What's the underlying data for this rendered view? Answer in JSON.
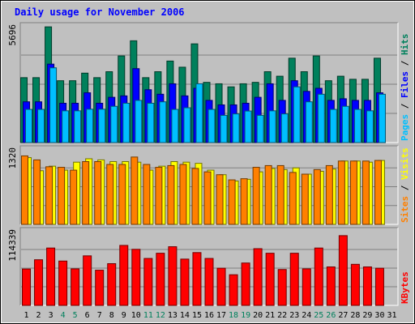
{
  "chart_data": {
    "type": "bar",
    "title": "Daily usage for November 2006",
    "days": [
      "1",
      "2",
      "3",
      "4",
      "5",
      "6",
      "7",
      "8",
      "9",
      "10",
      "11",
      "12",
      "13",
      "14",
      "15",
      "16",
      "17",
      "18",
      "19",
      "20",
      "21",
      "22",
      "23",
      "24",
      "25",
      "26",
      "27",
      "28",
      "29",
      "30",
      "31"
    ],
    "weekend_days": [
      "4",
      "5",
      "11",
      "12",
      "18",
      "19",
      "25",
      "26"
    ],
    "panels": [
      {
        "id": "top",
        "max_label": "5696",
        "ymax": 5696,
        "series": [
          {
            "name": "Hits",
            "color": "#00805C",
            "values": [
              3170,
              3170,
              5650,
              3020,
              3020,
              3390,
              3170,
              3460,
              4230,
              4970,
              3170,
              3460,
              3980,
              3680,
              4820,
              2940,
              2870,
              2720,
              2870,
              2940,
              3460,
              3240,
              4120,
              3460,
              4230,
              3020,
              3240,
              3090,
              3090,
              4120
            ]
          },
          {
            "name": "Files",
            "color": "#0000FF",
            "values": [
              1990,
              1990,
              3830,
              1920,
              1920,
              2430,
              1920,
              2210,
              2280,
              3610,
              2580,
              2360,
              2870,
              2280,
              2650,
              2060,
              1840,
              1840,
              1920,
              2210,
              2870,
              2060,
              3020,
              2500,
              2650,
              2060,
              2140,
              2060,
              2060,
              2430
            ]
          },
          {
            "name": "Pages",
            "color": "#00BFFF",
            "values": [
              1620,
              1620,
              3650,
              1550,
              1550,
              1630,
              1630,
              1770,
              1920,
              2060,
              1920,
              1990,
              1620,
              1700,
              2870,
              1620,
              1330,
              1400,
              1540,
              1330,
              1550,
              1400,
              2720,
              1990,
              2360,
              1620,
              1770,
              1620,
              1550,
              2360
            ]
          }
        ],
        "legend": [
          "Pages",
          "Files",
          "Hits"
        ]
      },
      {
        "id": "mid",
        "max_label": "1320",
        "ymax": 1320,
        "series": [
          {
            "name": "Visits",
            "color": "#FFFF00",
            "values": [
              1170,
              940,
              1020,
              950,
              1090,
              1150,
              1130,
              1100,
              1100,
              1090,
              950,
              1020,
              1100,
              1090,
              1070,
              950,
              870,
              760,
              790,
              920,
              980,
              960,
              990,
              880,
              930,
              970,
              1110,
              1110,
              1090,
              1120
            ]
          },
          {
            "name": "Sites",
            "color": "#FF8000",
            "values": [
              1200,
              1130,
              1010,
              1000,
              950,
              1100,
              1100,
              1050,
              1050,
              1180,
              1050,
              1000,
              1030,
              1050,
              980,
              920,
              870,
              780,
              800,
              1000,
              1030,
              1030,
              910,
              880,
              960,
              1030,
              1110,
              1110,
              1110,
              1120
            ]
          }
        ],
        "legend": [
          "Sites",
          "Visits"
        ]
      },
      {
        "id": "bot",
        "max_label": "114339",
        "ymax": 114339,
        "series": [
          {
            "name": "KBytes",
            "color": "#FF0000",
            "values": [
              55760,
              70000,
              88000,
              68000,
              56000,
              76000,
              54000,
              64000,
              92000,
              86000,
              72000,
              80000,
              90000,
              71000,
              81000,
              72000,
              57000,
              47000,
              65000,
              87000,
              80000,
              55000,
              80000,
              56000,
              88000,
              59000,
              107000,
              63000,
              59000,
              57000
            ]
          }
        ],
        "legend": [
          "KBytes"
        ]
      }
    ]
  }
}
